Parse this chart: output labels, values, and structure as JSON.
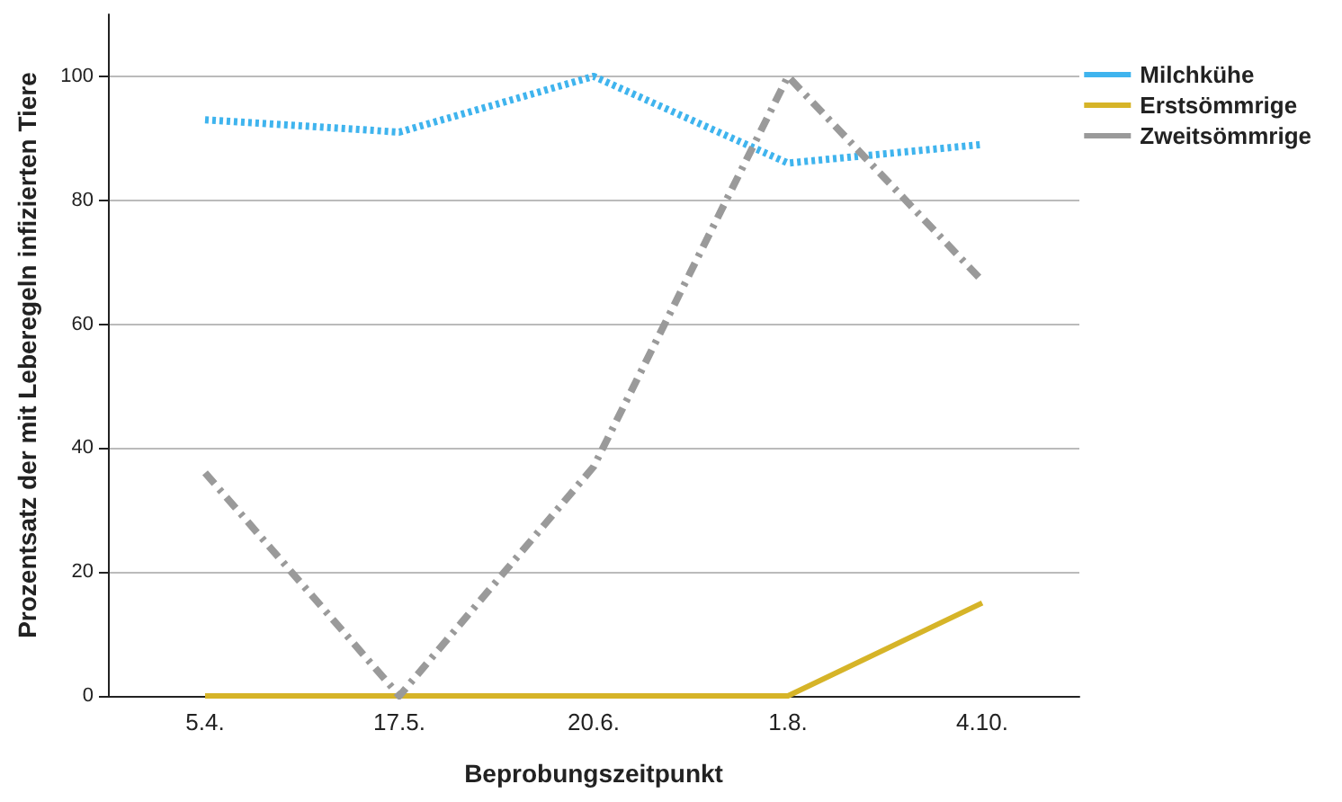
{
  "chart_data": {
    "type": "line",
    "xlabel": "Beprobungszeitpunkt",
    "ylabel": "Prozentsatz der mit Leberegeln infizierten Tiere",
    "categories": [
      "5.4.",
      "17.5.",
      "20.6.",
      "1.8.",
      "4.10."
    ],
    "series": [
      {
        "name": "Milchkühe",
        "color": "#3fb4ee",
        "line_style": "dotted",
        "values": [
          93,
          91,
          100,
          86,
          89
        ]
      },
      {
        "name": "Erstsömmrige",
        "color": "#d6b428",
        "line_style": "solid",
        "values": [
          0,
          0,
          0,
          0,
          15
        ]
      },
      {
        "name": "Zweitsömmrige",
        "color": "#9a9a9a",
        "line_style": "dashed",
        "values": [
          36,
          0,
          37,
          100,
          67
        ]
      }
    ],
    "ylim": [
      0,
      110
    ],
    "yticks": [
      0,
      20,
      40,
      60,
      80,
      100
    ],
    "grid": "y",
    "legend": "top right",
    "marker": "none"
  }
}
